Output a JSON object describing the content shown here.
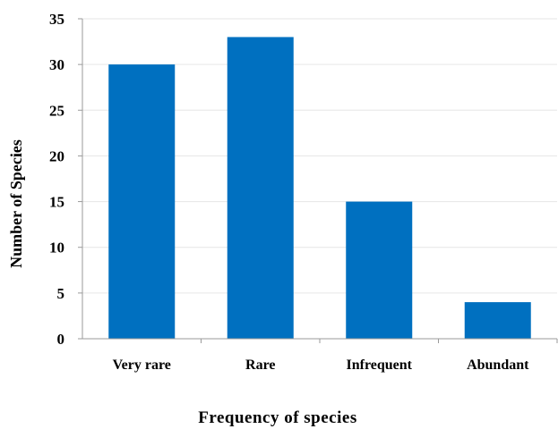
{
  "chart_data": {
    "type": "bar",
    "categories": [
      "Very rare",
      "Rare",
      "Infrequent",
      "Abundant"
    ],
    "values": [
      30,
      33,
      15,
      4
    ],
    "xlabel": "Frequency of species",
    "ylabel": "Number of Species",
    "ylim": [
      0,
      35
    ],
    "yticks": [
      0,
      5,
      10,
      15,
      20,
      25,
      30,
      35
    ],
    "grid": true,
    "bar_color": "#0070C0",
    "grid_color": "#E6E6E6",
    "axis_color": "#9A9A9A"
  }
}
